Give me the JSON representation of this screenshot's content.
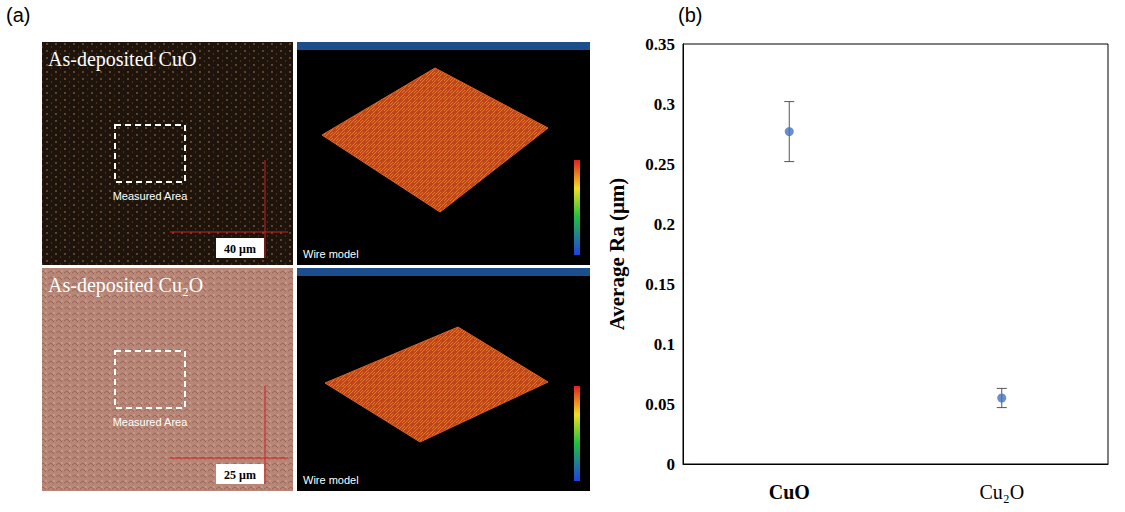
{
  "panel_labels": [
    "(a)",
    "(b)"
  ],
  "images": [
    {
      "title": "As-deposited CuO",
      "area_label": "Measured Area",
      "scale_bar": "40 μm",
      "model_label": "Wire model"
    },
    {
      "title": "As-deposited Cu₂O",
      "area_label": "Measured Area",
      "scale_bar": "25 μm",
      "model_label": "Wire model"
    }
  ],
  "chart_data": {
    "type": "scatter",
    "categories": [
      "CuO",
      "Cu₂O"
    ],
    "values": [
      0.277,
      0.055
    ],
    "errors": [
      0.025,
      0.008
    ],
    "y_label": "Average Ra (μm)",
    "color": "#4472c4",
    "marker": "circle",
    "ylim": [
      0,
      0.35
    ],
    "yticks": [
      0,
      0.05,
      0.1,
      0.15,
      0.2,
      0.25,
      0.3,
      0.35
    ],
    "grid": false
  }
}
